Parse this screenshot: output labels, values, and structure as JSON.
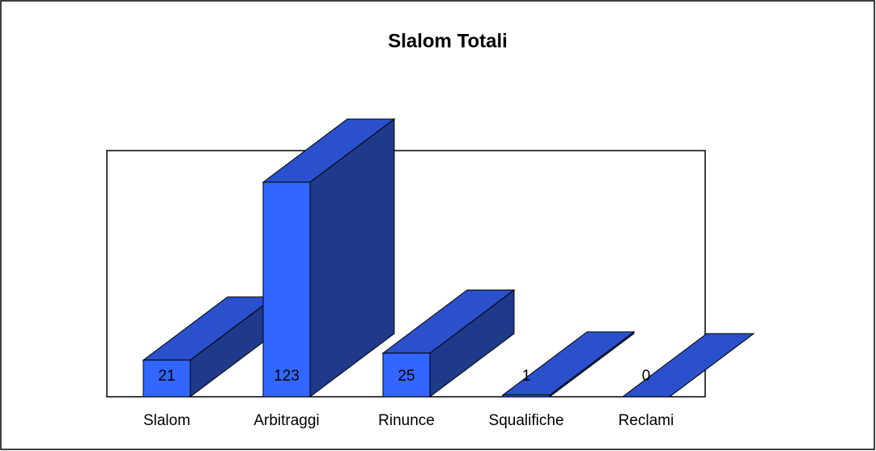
{
  "chart_data": {
    "type": "bar3d",
    "title": "Slalom Totali",
    "categories": [
      "Slalom",
      "Arbitraggi",
      "Rinunce",
      "Squalifiche",
      "Reclami"
    ],
    "values": [
      21,
      123,
      25,
      1,
      0
    ],
    "color": "#3366ff"
  }
}
